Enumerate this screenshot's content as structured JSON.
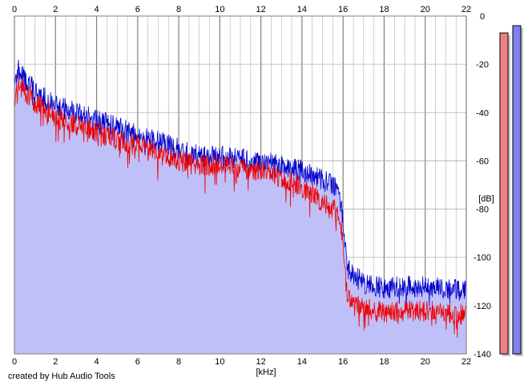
{
  "chart_data": {
    "type": "area",
    "title": "",
    "xlabel": "[kHz]",
    "ylabel": "[dB]",
    "xlim": [
      0,
      22
    ],
    "ylim": [
      -140,
      0
    ],
    "x_ticks": [
      0,
      2,
      4,
      6,
      8,
      10,
      12,
      14,
      16,
      18,
      20,
      22
    ],
    "y_ticks": [
      0,
      -20,
      -40,
      -60,
      -80,
      -100,
      -120,
      -140
    ],
    "x_tick_labels": [
      "0",
      "2",
      "4",
      "6",
      "8",
      "10",
      "12",
      "14",
      "16",
      "18",
      "20",
      "22"
    ],
    "y_tick_labels": [
      "0",
      "-20",
      "-40",
      "-60",
      "-80",
      "-100",
      "-120",
      "-140"
    ],
    "grid": true,
    "colors": {
      "fill": "#c0c0f8",
      "blue_line": "#0000cc",
      "red_line": "#ee0000",
      "grid": "#b0b0b0",
      "grid_major": "#808080",
      "meter_left": "#f08080",
      "meter_right": "#8080f0"
    },
    "series": [
      {
        "color": "blue",
        "x": [
          0,
          0.2,
          0.5,
          1,
          1.5,
          2,
          3,
          4,
          5,
          6,
          7,
          8,
          9,
          10,
          11,
          12,
          13,
          14,
          15,
          15.5,
          15.8,
          16,
          16.2,
          16.5,
          17,
          18,
          19,
          20,
          21,
          22
        ],
        "y": [
          -28,
          -22,
          -26,
          -31,
          -34,
          -37,
          -40,
          -43,
          -46,
          -49,
          -52,
          -55,
          -58,
          -58,
          -59,
          -60,
          -62,
          -64,
          -68,
          -70,
          -72,
          -84,
          -104,
          -108,
          -110,
          -113,
          -112,
          -112,
          -113,
          -114
        ]
      },
      {
        "color": "red",
        "x": [
          0,
          0.2,
          0.5,
          1,
          1.5,
          2,
          3,
          4,
          5,
          6,
          7,
          8,
          9,
          10,
          11,
          12,
          13,
          14,
          15,
          15.5,
          15.8,
          16,
          16.2,
          16.5,
          17,
          18,
          19,
          20,
          21,
          22
        ],
        "y": [
          -34,
          -28,
          -31,
          -36,
          -39,
          -42,
          -45,
          -48,
          -51,
          -54,
          -57,
          -60,
          -62,
          -62,
          -63,
          -64,
          -67,
          -71,
          -77,
          -80,
          -82,
          -92,
          -116,
          -120,
          -121,
          -123,
          -122,
          -122,
          -123,
          -124
        ]
      }
    ],
    "meters": {
      "left_level": -7,
      "right_level": -4
    }
  },
  "credit": "created by Hub Audio Tools"
}
